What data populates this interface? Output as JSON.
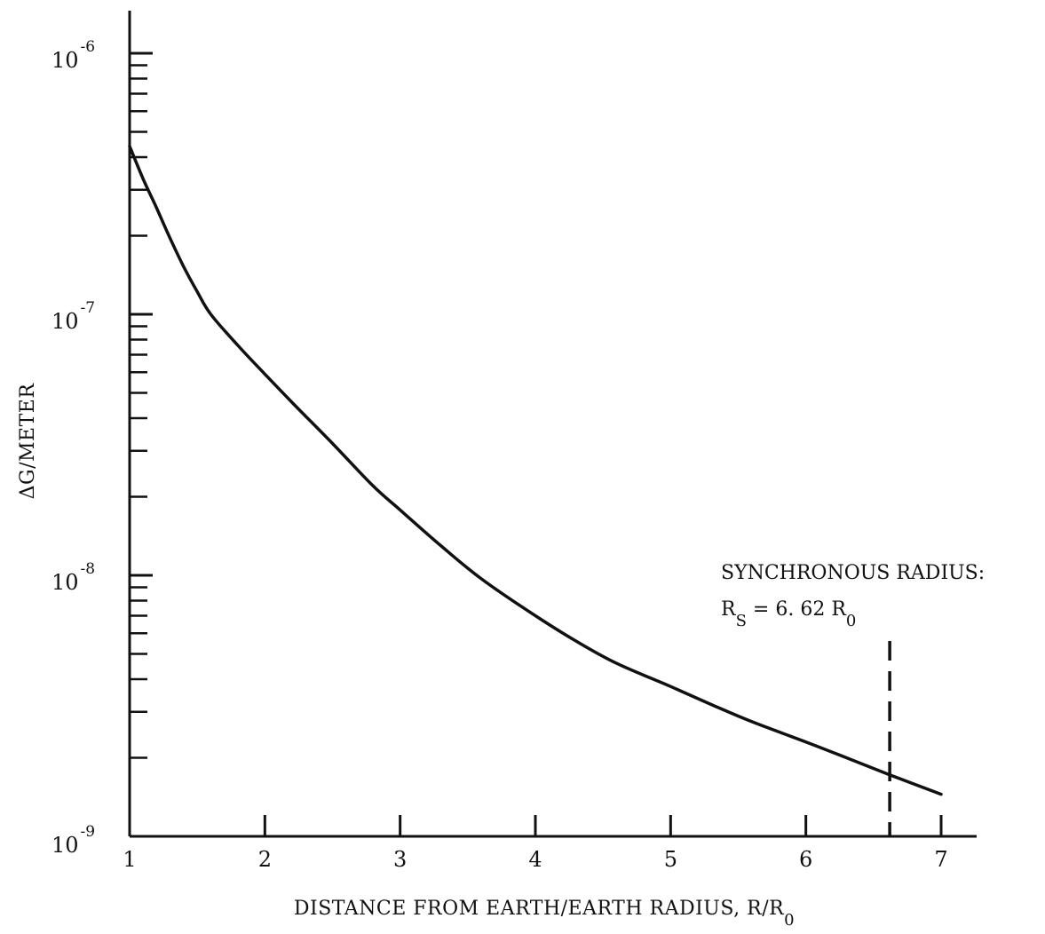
{
  "chart_data": {
    "type": "line",
    "title": "",
    "xlabel": "DISTANCE FROM EARTH/EARTH RADIUS, R/R",
    "xlabel_subscript": "0",
    "ylabel": "ΔG/METER",
    "x_scale": "linear",
    "y_scale": "log",
    "xlim": [
      1,
      7
    ],
    "ylim": [
      1e-09,
      1e-06
    ],
    "grid": false,
    "x_ticks": [
      1,
      2,
      3,
      4,
      5,
      6,
      7
    ],
    "x_tick_labels": [
      "1",
      "2",
      "3",
      "4",
      "5",
      "6",
      "7"
    ],
    "y_ticks": [
      1e-09,
      1e-08,
      1e-07,
      1e-06
    ],
    "y_tick_labels": [
      {
        "base": "10",
        "exp": "-9"
      },
      {
        "base": "10",
        "exp": "-8"
      },
      {
        "base": "10",
        "exp": "-7"
      },
      {
        "base": "10",
        "exp": "-6"
      }
    ],
    "series": [
      {
        "x": [
          1.0,
          1.1,
          1.2,
          1.3,
          1.4,
          1.5,
          1.6,
          1.8,
          2.0,
          2.2,
          2.5,
          2.8,
          3.0,
          3.3,
          3.6,
          4.0,
          4.3,
          4.6,
          5.0,
          5.3,
          5.6,
          6.0,
          6.3,
          6.62,
          7.0
        ],
        "y": [
          4.4e-07,
          3.3e-07,
          2.55e-07,
          1.95e-07,
          1.52e-07,
          1.22e-07,
          1e-07,
          7.6e-08,
          5.9e-08,
          4.6e-08,
          3.2e-08,
          2.2e-08,
          1.78e-08,
          1.3e-08,
          9.7e-09,
          7e-09,
          5.6e-09,
          4.6e-09,
          3.75e-09,
          3.2e-09,
          2.75e-09,
          2.3e-09,
          2e-09,
          1.72e-09,
          1.45e-09
        ]
      }
    ],
    "annotations": [
      {
        "line1": "SYNCHRONOUS RADIUS:",
        "line2_symbol": "R",
        "line2_symbol_sub": "S",
        "line2_rest": " = 6. 62 R",
        "line2_rest_sub": "0",
        "x": 6.62,
        "style": "dashed vertical line"
      }
    ]
  }
}
